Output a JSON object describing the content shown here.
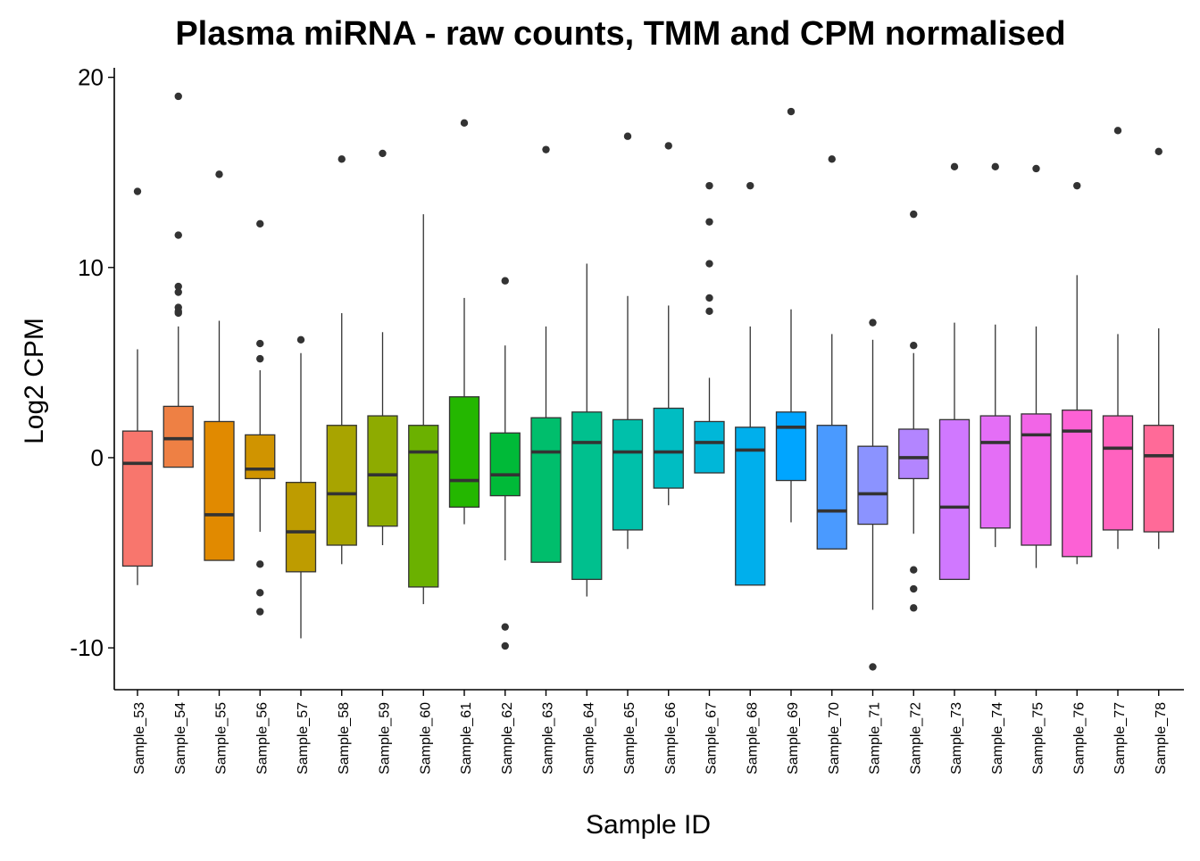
{
  "chart_data": {
    "type": "boxplot",
    "title": "Plasma miRNA - raw counts, TMM and CPM normalised",
    "xlabel": "Sample ID",
    "ylabel": "Log2 CPM",
    "ylim": [
      -12.2,
      20.5
    ],
    "yticks": [
      -10,
      0,
      10,
      20
    ],
    "grid": false,
    "legend": "none",
    "boxes": [
      {
        "category": "Sample_53",
        "color": "#F8766D",
        "q1": -5.7,
        "median": -0.3,
        "q3": 1.4,
        "whisker_low": -6.7,
        "whisker_high": 5.7,
        "outliers": [
          14.0
        ]
      },
      {
        "category": "Sample_54",
        "color": "#EE8044",
        "q1": -0.5,
        "median": 1.0,
        "q3": 2.7,
        "whisker_low": -0.5,
        "whisker_high": 6.9,
        "outliers": [
          19.0,
          11.7,
          9.0,
          8.7,
          7.9,
          7.7,
          7.6
        ]
      },
      {
        "category": "Sample_55",
        "color": "#E18A00",
        "q1": -5.4,
        "median": -3.0,
        "q3": 1.9,
        "whisker_low": -5.4,
        "whisker_high": 7.2,
        "outliers": [
          14.9
        ]
      },
      {
        "category": "Sample_56",
        "color": "#D09400",
        "q1": -1.1,
        "median": -0.6,
        "q3": 1.2,
        "whisker_low": -3.9,
        "whisker_high": 4.6,
        "outliers": [
          12.3,
          6.0,
          5.2,
          -5.6,
          -7.1,
          -8.1
        ]
      },
      {
        "category": "Sample_57",
        "color": "#BE9C00",
        "q1": -6.0,
        "median": -3.9,
        "q3": -1.3,
        "whisker_low": -9.5,
        "whisker_high": 5.5,
        "outliers": [
          6.2
        ]
      },
      {
        "category": "Sample_58",
        "color": "#A8A400",
        "q1": -4.6,
        "median": -1.9,
        "q3": 1.7,
        "whisker_low": -5.6,
        "whisker_high": 7.6,
        "outliers": [
          15.7
        ]
      },
      {
        "category": "Sample_59",
        "color": "#8EAB00",
        "q1": -3.6,
        "median": -0.9,
        "q3": 2.2,
        "whisker_low": -4.6,
        "whisker_high": 6.6,
        "outliers": [
          16.0
        ]
      },
      {
        "category": "Sample_60",
        "color": "#6BB100",
        "q1": -6.8,
        "median": 0.3,
        "q3": 1.7,
        "whisker_low": -7.7,
        "whisker_high": 12.8,
        "outliers": []
      },
      {
        "category": "Sample_61",
        "color": "#24B700",
        "q1": -2.6,
        "median": -1.2,
        "q3": 3.2,
        "whisker_low": -3.5,
        "whisker_high": 8.4,
        "outliers": [
          17.6
        ]
      },
      {
        "category": "Sample_62",
        "color": "#00BA38",
        "q1": -2.0,
        "median": -0.9,
        "q3": 1.3,
        "whisker_low": -5.4,
        "whisker_high": 5.9,
        "outliers": [
          9.3,
          -8.9,
          -9.9
        ]
      },
      {
        "category": "Sample_63",
        "color": "#00BE6C",
        "q1": -5.5,
        "median": 0.3,
        "q3": 2.1,
        "whisker_low": -5.5,
        "whisker_high": 6.9,
        "outliers": [
          16.2
        ]
      },
      {
        "category": "Sample_64",
        "color": "#00C08E",
        "q1": -6.4,
        "median": 0.8,
        "q3": 2.4,
        "whisker_low": -7.3,
        "whisker_high": 10.2,
        "outliers": []
      },
      {
        "category": "Sample_65",
        "color": "#00C0AA",
        "q1": -3.8,
        "median": 0.3,
        "q3": 2.0,
        "whisker_low": -4.8,
        "whisker_high": 8.5,
        "outliers": [
          16.9
        ]
      },
      {
        "category": "Sample_66",
        "color": "#00BDC2",
        "q1": -1.6,
        "median": 0.3,
        "q3": 2.6,
        "whisker_low": -2.5,
        "whisker_high": 8.0,
        "outliers": [
          16.4
        ]
      },
      {
        "category": "Sample_67",
        "color": "#00B7D8",
        "q1": -0.8,
        "median": 0.8,
        "q3": 1.9,
        "whisker_low": -0.8,
        "whisker_high": 4.2,
        "outliers": [
          14.3,
          12.4,
          10.2,
          8.4,
          7.7
        ]
      },
      {
        "category": "Sample_68",
        "color": "#00AFEC",
        "q1": -6.7,
        "median": 0.4,
        "q3": 1.6,
        "whisker_low": -6.7,
        "whisker_high": 6.9,
        "outliers": [
          14.3
        ]
      },
      {
        "category": "Sample_69",
        "color": "#00A5FF",
        "q1": -1.2,
        "median": 1.6,
        "q3": 2.4,
        "whisker_low": -3.4,
        "whisker_high": 7.8,
        "outliers": [
          18.2
        ]
      },
      {
        "category": "Sample_70",
        "color": "#4A9AFF",
        "q1": -4.8,
        "median": -2.8,
        "q3": 1.7,
        "whisker_low": -4.8,
        "whisker_high": 6.5,
        "outliers": [
          15.7
        ]
      },
      {
        "category": "Sample_71",
        "color": "#8B93FF",
        "q1": -3.5,
        "median": -1.9,
        "q3": 0.6,
        "whisker_low": -8.0,
        "whisker_high": 6.2,
        "outliers": [
          7.1,
          -11.0
        ]
      },
      {
        "category": "Sample_72",
        "color": "#B385FF",
        "q1": -1.1,
        "median": 0.0,
        "q3": 1.5,
        "whisker_low": -4.0,
        "whisker_high": 5.5,
        "outliers": [
          12.8,
          5.9,
          -5.9,
          -6.9,
          -7.9
        ]
      },
      {
        "category": "Sample_73",
        "color": "#D078FF",
        "q1": -6.4,
        "median": -2.6,
        "q3": 2.0,
        "whisker_low": -6.4,
        "whisker_high": 7.1,
        "outliers": [
          15.3
        ]
      },
      {
        "category": "Sample_74",
        "color": "#E46EF6",
        "q1": -3.7,
        "median": 0.8,
        "q3": 2.2,
        "whisker_low": -4.7,
        "whisker_high": 7.0,
        "outliers": [
          15.3
        ]
      },
      {
        "category": "Sample_75",
        "color": "#F265E7",
        "q1": -4.6,
        "median": 1.2,
        "q3": 2.3,
        "whisker_low": -5.8,
        "whisker_high": 6.9,
        "outliers": [
          15.2
        ]
      },
      {
        "category": "Sample_76",
        "color": "#FC61D5",
        "q1": -5.2,
        "median": 1.4,
        "q3": 2.5,
        "whisker_low": -5.6,
        "whisker_high": 9.6,
        "outliers": [
          14.3
        ]
      },
      {
        "category": "Sample_77",
        "color": "#FF62BF",
        "q1": -3.8,
        "median": 0.5,
        "q3": 2.2,
        "whisker_low": -4.8,
        "whisker_high": 6.5,
        "outliers": [
          17.2
        ]
      },
      {
        "category": "Sample_78",
        "color": "#FF6A98",
        "q1": -3.9,
        "median": 0.1,
        "q3": 1.7,
        "whisker_low": -4.8,
        "whisker_high": 6.8,
        "outliers": [
          16.1
        ]
      }
    ]
  }
}
